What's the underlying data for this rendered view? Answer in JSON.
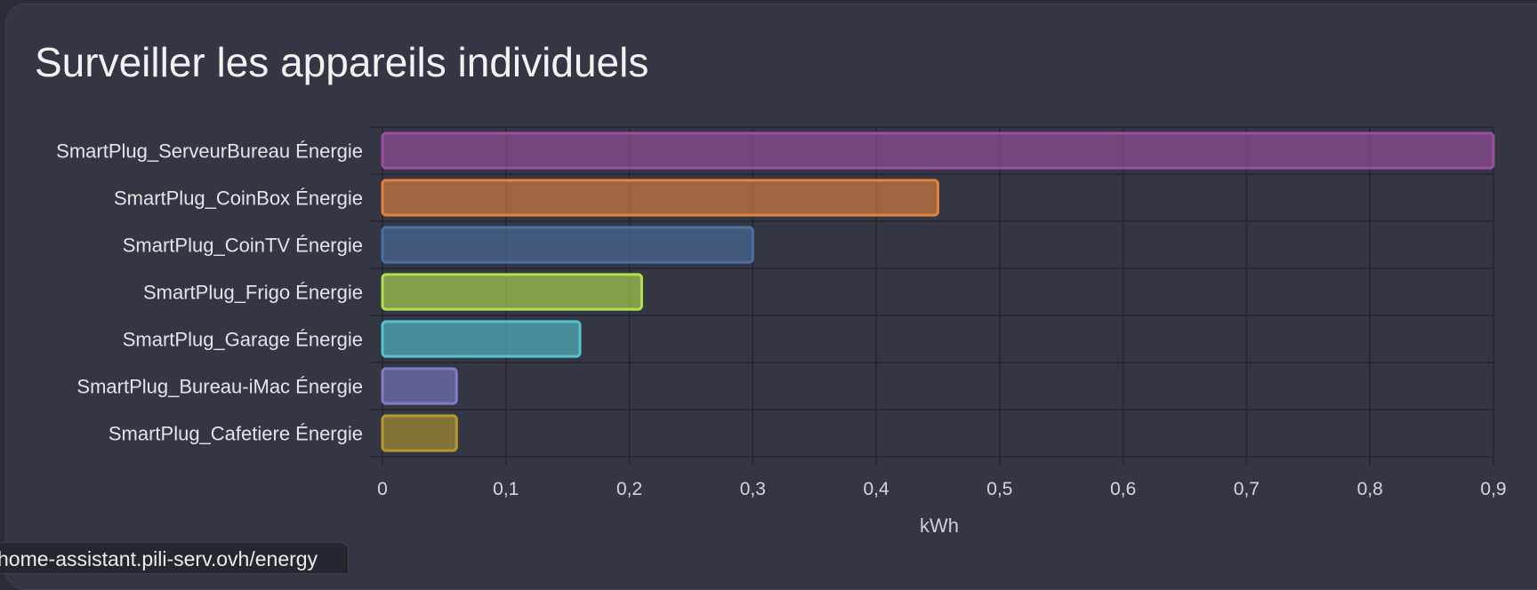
{
  "card": {
    "title": "Surveiller les appareils individuels"
  },
  "status_bar": {
    "url": "home-assistant.pili-serv.ovh/energy"
  },
  "chart_data": {
    "type": "bar",
    "orientation": "horizontal",
    "categories": [
      "SmartPlug_ServeurBureau Énergie",
      "SmartPlug_CoinBox Énergie",
      "SmartPlug_CoinTV Énergie",
      "SmartPlug_Frigo Énergie",
      "SmartPlug_Garage Énergie",
      "SmartPlug_Bureau-iMac Énergie",
      "SmartPlug_Cafetiere Énergie"
    ],
    "values": [
      0.9,
      0.45,
      0.3,
      0.21,
      0.16,
      0.06,
      0.06
    ],
    "colors": [
      "#9b4fa0",
      "#e2833b",
      "#4a6fa0",
      "#b5e04e",
      "#55c3cf",
      "#7d7dc4",
      "#b49a2e"
    ],
    "xlabel": "kWh",
    "xlim": [
      0,
      0.9
    ],
    "x_ticks": [
      "0",
      "0,1",
      "0,2",
      "0,3",
      "0,4",
      "0,5",
      "0,6",
      "0,7",
      "0,8",
      "0,9"
    ],
    "grid": true,
    "legend": "none"
  }
}
